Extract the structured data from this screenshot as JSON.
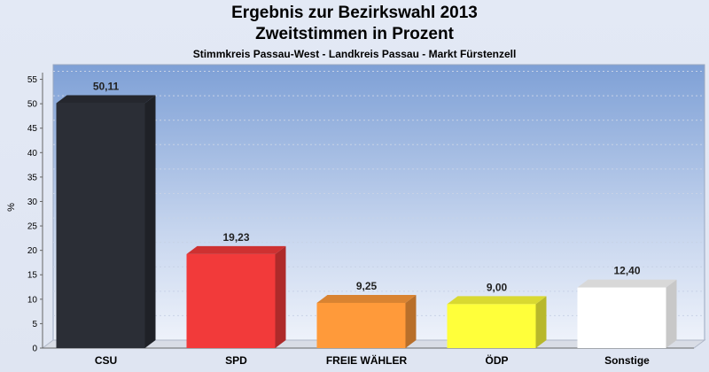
{
  "chart_data": {
    "type": "bar",
    "title": "Ergebnis zur Bezirkswahl 2013",
    "subtitle": "Zweitstimmen in Prozent",
    "subsubtitle": "Stimmkreis Passau-West - Landkreis Passau - Markt Fürstenzell",
    "ylabel": "%",
    "ylim": [
      0,
      58
    ],
    "yticks": [
      "0",
      "5",
      "10",
      "15",
      "20",
      "25",
      "30",
      "35",
      "40",
      "45",
      "50",
      "55"
    ],
    "categories": [
      "CSU",
      "SPD",
      "FREIE WÄHLER",
      "ÖDP",
      "Sonstige"
    ],
    "values": [
      50.11,
      19.23,
      9.25,
      9.0,
      12.4
    ],
    "value_labels": [
      "50,11",
      "19,23",
      "9,25",
      "9,00",
      "12,40"
    ],
    "colors": [
      "#2b2e36",
      "#f23a3a",
      "#ff9a3a",
      "#ffff3a",
      "#ffffff"
    ],
    "grid": true
  }
}
